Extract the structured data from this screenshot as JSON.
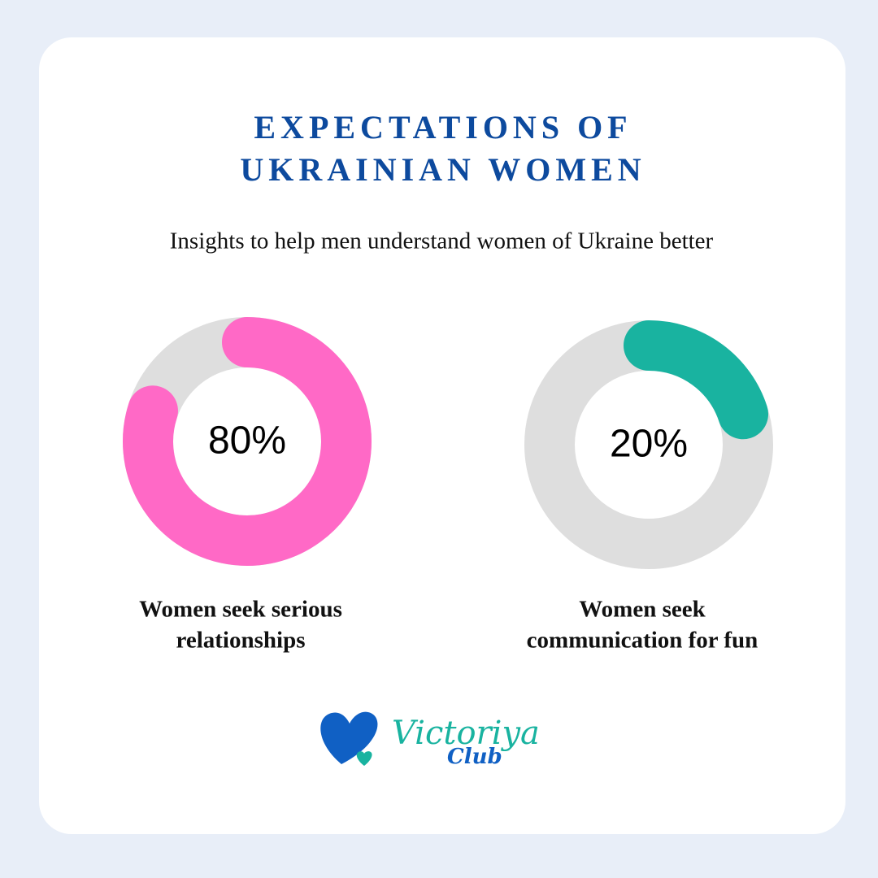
{
  "header": {
    "title": [
      "EXPECTATIONS OF",
      "UKRAINIAN WOMEN"
    ],
    "subtitle": "Insights to help men understand women of Ukraine better"
  },
  "chart_data": [
    {
      "type": "donut",
      "values": [
        80
      ],
      "value_labels": [
        "80%"
      ],
      "color": "#ff69c6",
      "track_color": "#dedede",
      "caption": [
        "Women seek serious",
        "relationships"
      ]
    },
    {
      "type": "donut",
      "values": [
        20
      ],
      "value_labels": [
        "20%"
      ],
      "color": "#19b3a0",
      "track_color": "#dedede",
      "caption": [
        "Women seek",
        "communication for fun"
      ]
    }
  ],
  "logo": {
    "line1": "Victoriya",
    "line2": "Club"
  }
}
